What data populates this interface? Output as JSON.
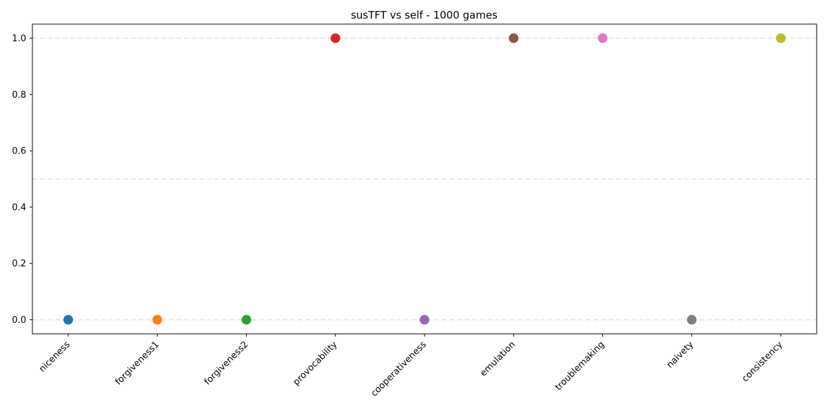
{
  "chart_data": {
    "type": "scatter",
    "title": "susTFT vs self - 1000 games",
    "xlabel": "",
    "ylabel": "",
    "categories": [
      "niceness",
      "forgiveness1",
      "forgiveness2",
      "provocability",
      "cooperativeness",
      "emulation",
      "troublemaking",
      "naivety",
      "consistency"
    ],
    "values": [
      0.0,
      0.0,
      0.0,
      1.0,
      0.0,
      1.0,
      1.0,
      0.0,
      1.0
    ],
    "colors": [
      "#1f77b4",
      "#ff7f0e",
      "#2ca02c",
      "#d62728",
      "#9467bd",
      "#8c564b",
      "#e377c2",
      "#7f7f7f",
      "#bcbd22"
    ],
    "ylim": [
      -0.05,
      1.05
    ],
    "yticks": [
      "0.0",
      "0.2",
      "0.4",
      "0.6",
      "0.8",
      "1.0"
    ],
    "reference_lines": [
      0.0,
      0.5,
      1.0
    ],
    "grid": false,
    "legend": "none"
  }
}
